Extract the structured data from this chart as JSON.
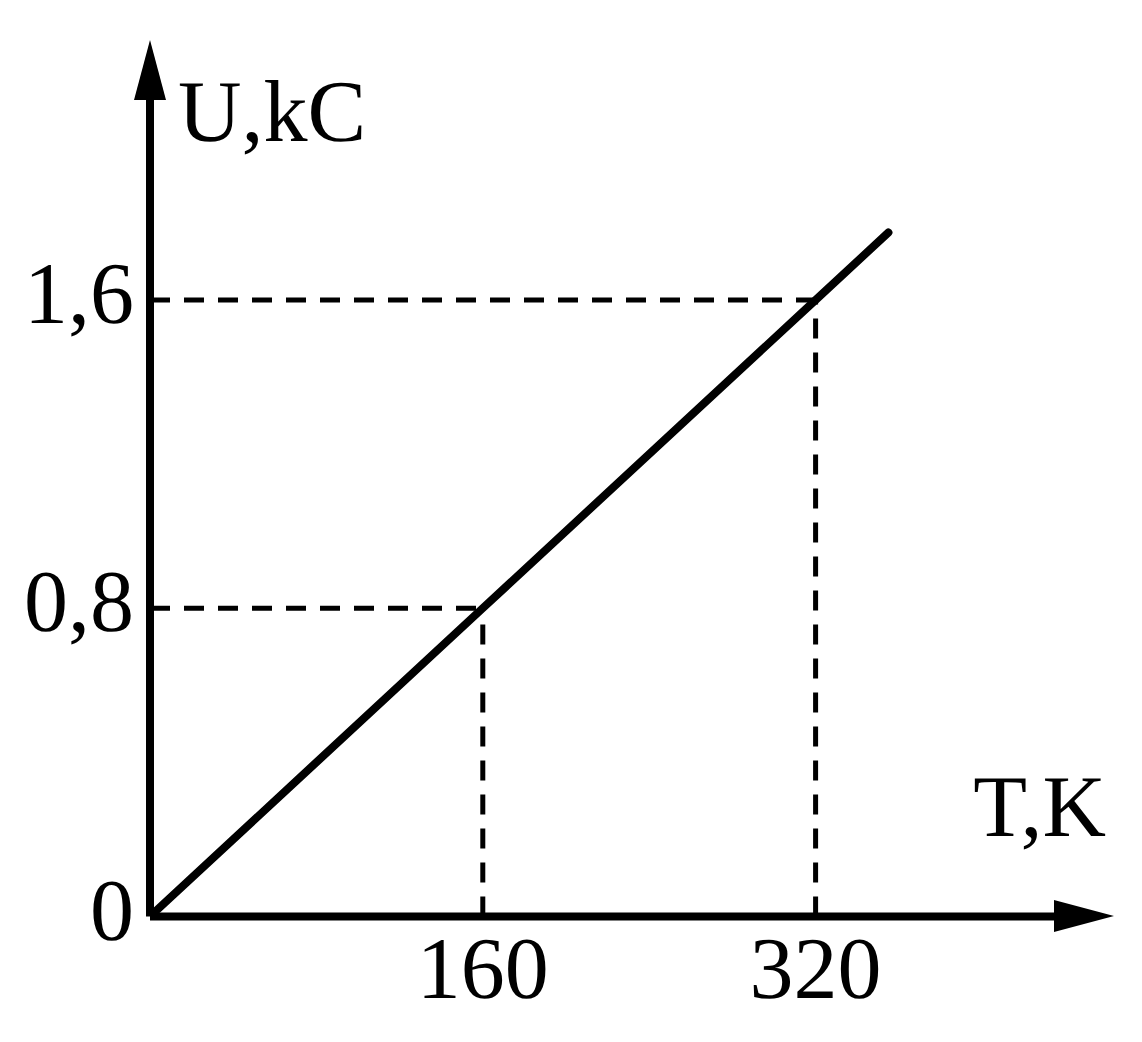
{
  "chart_data": {
    "type": "line",
    "xlabel": "T,K",
    "ylabel": "U,kC",
    "x": [
      0,
      160,
      320,
      355
    ],
    "series": [
      {
        "color": "#000000",
        "values": [
          0,
          0.8,
          1.6,
          1.775
        ]
      }
    ],
    "xlim": [
      0,
      450
    ],
    "ylim": [
      0,
      2.2
    ],
    "xticks": [
      160,
      320
    ],
    "yticks": [
      0,
      {
        "value": 0.8,
        "label": "0,8"
      },
      {
        "value": 1.6,
        "label": "1,6"
      }
    ],
    "grid": false,
    "legend": false,
    "marker": "none",
    "line_style": "solid",
    "ref_lines": [
      {
        "axis": "x",
        "value": 160,
        "line_style": "dashed"
      },
      {
        "axis": "x",
        "value": 320,
        "line_style": "dashed"
      },
      {
        "axis": "y",
        "value": 0.8,
        "line_style": "dashed"
      },
      {
        "axis": "y",
        "value": 1.6,
        "line_style": "dashed"
      }
    ]
  }
}
